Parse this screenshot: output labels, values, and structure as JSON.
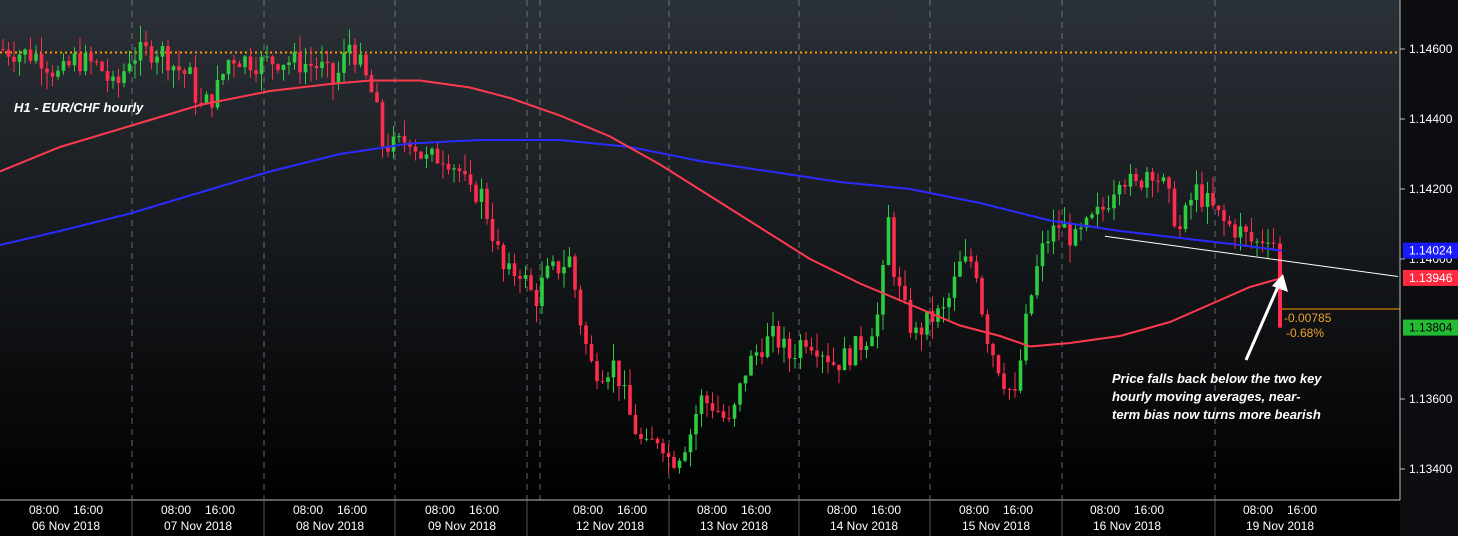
{
  "chart_data": {
    "type": "candlestick",
    "title": "H1 - EUR/CHF hourly",
    "colors": {
      "background_top": "#2b3138",
      "background_bottom": "#000000",
      "up": "#2ecc40",
      "down": "#ff2d4d",
      "ma_fast": "#ff3a4f",
      "ma_slow": "#2b2bff",
      "reference_line": "#ff9900",
      "trendline": "#ffffff",
      "tag_current": "#22bb33",
      "tag_ma_fast": "#ff2a40",
      "tag_ma_slow": "#1a1aff"
    },
    "y_axis": {
      "ticks": [
        "1.14600",
        "1.14400",
        "1.14200",
        "1.14000",
        "1.13600",
        "1.13400"
      ],
      "tick_values": [
        1.146,
        1.144,
        1.142,
        1.14,
        1.136,
        1.134
      ],
      "ylim": [
        1.1325,
        1.1475
      ]
    },
    "x_axis": {
      "days": [
        {
          "date": "06 Nov 2018",
          "times": [
            "08:00",
            "16:00"
          ]
        },
        {
          "date": "07 Nov 2018",
          "times": [
            "08:00",
            "16:00"
          ]
        },
        {
          "date": "08 Nov 2018",
          "times": [
            "08:00",
            "16:00"
          ]
        },
        {
          "date": "09 Nov 2018",
          "times": [
            "08:00",
            "16:00"
          ]
        },
        {
          "date": "12 Nov 2018",
          "times": [
            "08:00",
            "16:00"
          ]
        },
        {
          "date": "13 Nov 2018",
          "times": [
            "08:00",
            "16:00"
          ]
        },
        {
          "date": "14 Nov 2018",
          "times": [
            "08:00",
            "16:00"
          ]
        },
        {
          "date": "15 Nov 2018",
          "times": [
            "08:00",
            "16:00"
          ]
        },
        {
          "date": "16 Nov 2018",
          "times": [
            "08:00",
            "16:00"
          ]
        },
        {
          "date": "19 Nov 2018",
          "times": [
            "08:00",
            "16:00"
          ]
        }
      ]
    },
    "horizontal_reference": {
      "value": 1.1459
    },
    "close_path": [
      [
        0,
        1.146
      ],
      [
        40,
        1.1458
      ],
      [
        60,
        1.1452
      ],
      [
        75,
        1.1457
      ],
      [
        100,
        1.1455
      ],
      [
        115,
        1.1448
      ],
      [
        130,
        1.1458
      ],
      [
        160,
        1.146
      ],
      [
        175,
        1.1455
      ],
      [
        190,
        1.1452
      ],
      [
        200,
        1.1443
      ],
      [
        215,
        1.1447
      ],
      [
        230,
        1.1458
      ],
      [
        260,
        1.1456
      ],
      [
        280,
        1.1457
      ],
      [
        300,
        1.1456
      ],
      [
        320,
        1.1455
      ],
      [
        335,
        1.145
      ],
      [
        350,
        1.1462
      ],
      [
        365,
        1.1452
      ],
      [
        375,
        1.1445
      ],
      [
        382,
        1.1433
      ],
      [
        395,
        1.1432
      ],
      [
        410,
        1.1435
      ],
      [
        425,
        1.1428
      ],
      [
        445,
        1.143
      ],
      [
        460,
        1.1425
      ],
      [
        470,
        1.1418
      ],
      [
        480,
        1.142
      ],
      [
        495,
        1.1405
      ],
      [
        505,
        1.1395
      ],
      [
        520,
        1.1397
      ],
      [
        535,
        1.1388
      ],
      [
        545,
        1.1395
      ],
      [
        560,
        1.1398
      ],
      [
        570,
        1.14
      ],
      [
        580,
        1.1383
      ],
      [
        590,
        1.137
      ],
      [
        600,
        1.1368
      ],
      [
        615,
        1.137
      ],
      [
        630,
        1.1355
      ],
      [
        645,
        1.1345
      ],
      [
        660,
        1.135
      ],
      [
        670,
        1.1342
      ],
      [
        680,
        1.1345
      ],
      [
        690,
        1.135
      ],
      [
        700,
        1.136
      ],
      [
        715,
        1.1358
      ],
      [
        730,
        1.1352
      ],
      [
        745,
        1.1368
      ],
      [
        760,
        1.1375
      ],
      [
        775,
        1.1378
      ],
      [
        790,
        1.1372
      ],
      [
        805,
        1.1378
      ],
      [
        820,
        1.1375
      ],
      [
        835,
        1.137
      ],
      [
        850,
        1.1373
      ],
      [
        865,
        1.1377
      ],
      [
        880,
        1.1385
      ],
      [
        888,
        1.1412
      ],
      [
        895,
        1.1395
      ],
      [
        905,
        1.1385
      ],
      [
        915,
        1.1378
      ],
      [
        930,
        1.1383
      ],
      [
        945,
        1.1385
      ],
      [
        960,
        1.1398
      ],
      [
        975,
        1.14
      ],
      [
        985,
        1.138
      ],
      [
        995,
        1.1372
      ],
      [
        1005,
        1.1365
      ],
      [
        1015,
        1.136
      ],
      [
        1025,
        1.138
      ],
      [
        1035,
        1.1395
      ],
      [
        1045,
        1.1405
      ],
      [
        1060,
        1.141
      ],
      [
        1075,
        1.1405
      ],
      [
        1090,
        1.141
      ],
      [
        1105,
        1.1415
      ],
      [
        1120,
        1.1425
      ],
      [
        1135,
        1.142
      ],
      [
        1150,
        1.1427
      ],
      [
        1165,
        1.142
      ],
      [
        1180,
        1.1408
      ],
      [
        1195,
        1.142
      ],
      [
        1210,
        1.1415
      ],
      [
        1225,
        1.141
      ],
      [
        1240,
        1.1408
      ],
      [
        1255,
        1.1404
      ],
      [
        1270,
        1.1408
      ],
      [
        1276,
        1.1403
      ],
      [
        1282,
        1.13804
      ]
    ],
    "ma_fast_path": [
      [
        0,
        1.1425
      ],
      [
        60,
        1.1432
      ],
      [
        130,
        1.1438
      ],
      [
        200,
        1.1444
      ],
      [
        270,
        1.1448
      ],
      [
        330,
        1.145
      ],
      [
        370,
        1.1451
      ],
      [
        420,
        1.1451
      ],
      [
        470,
        1.1449
      ],
      [
        510,
        1.1446
      ],
      [
        560,
        1.1441
      ],
      [
        610,
        1.1435
      ],
      [
        660,
        1.1427
      ],
      [
        710,
        1.1418
      ],
      [
        760,
        1.1409
      ],
      [
        810,
        1.14
      ],
      [
        860,
        1.1393
      ],
      [
        910,
        1.1387
      ],
      [
        960,
        1.1381
      ],
      [
        1000,
        1.1378
      ],
      [
        1030,
        1.1375
      ],
      [
        1070,
        1.1376
      ],
      [
        1120,
        1.1378
      ],
      [
        1170,
        1.1382
      ],
      [
        1210,
        1.1387
      ],
      [
        1250,
        1.1392
      ],
      [
        1282,
        1.13946
      ]
    ],
    "ma_slow_path": [
      [
        0,
        1.1404
      ],
      [
        60,
        1.1408
      ],
      [
        130,
        1.1413
      ],
      [
        200,
        1.1419
      ],
      [
        270,
        1.1425
      ],
      [
        340,
        1.143
      ],
      [
        410,
        1.1433
      ],
      [
        480,
        1.1434
      ],
      [
        560,
        1.1434
      ],
      [
        630,
        1.1432
      ],
      [
        700,
        1.1428
      ],
      [
        770,
        1.1425
      ],
      [
        840,
        1.1422
      ],
      [
        910,
        1.142
      ],
      [
        980,
        1.1416
      ],
      [
        1050,
        1.1411
      ],
      [
        1120,
        1.1408
      ],
      [
        1180,
        1.1406
      ],
      [
        1240,
        1.1404
      ],
      [
        1282,
        1.14024
      ]
    ],
    "trendline": {
      "from": [
        1105,
        1.14065
      ],
      "to": [
        1398,
        1.1395
      ]
    },
    "price_tags": [
      {
        "name": "ma-slow-tag",
        "label": "1.14024",
        "value": 1.14024,
        "bg": "#1a1aff",
        "fg": "#ffffff"
      },
      {
        "name": "ma-fast-tag",
        "label": "1.13946",
        "value": 1.13946,
        "bg": "#ff2a40",
        "fg": "#ffffff"
      },
      {
        "name": "last-price-tag",
        "label": "1.13804",
        "value": 1.13804,
        "bg": "#22bb33",
        "fg": "#000000"
      }
    ],
    "hidden_tick_fragment": "1.14000",
    "change": {
      "abs": "-0.00785",
      "pct": "-0.68%"
    },
    "annotation": {
      "lines": [
        "Price falls back below the two key",
        "hourly moving averages, near-",
        "term bias now turns more bearish"
      ]
    }
  }
}
